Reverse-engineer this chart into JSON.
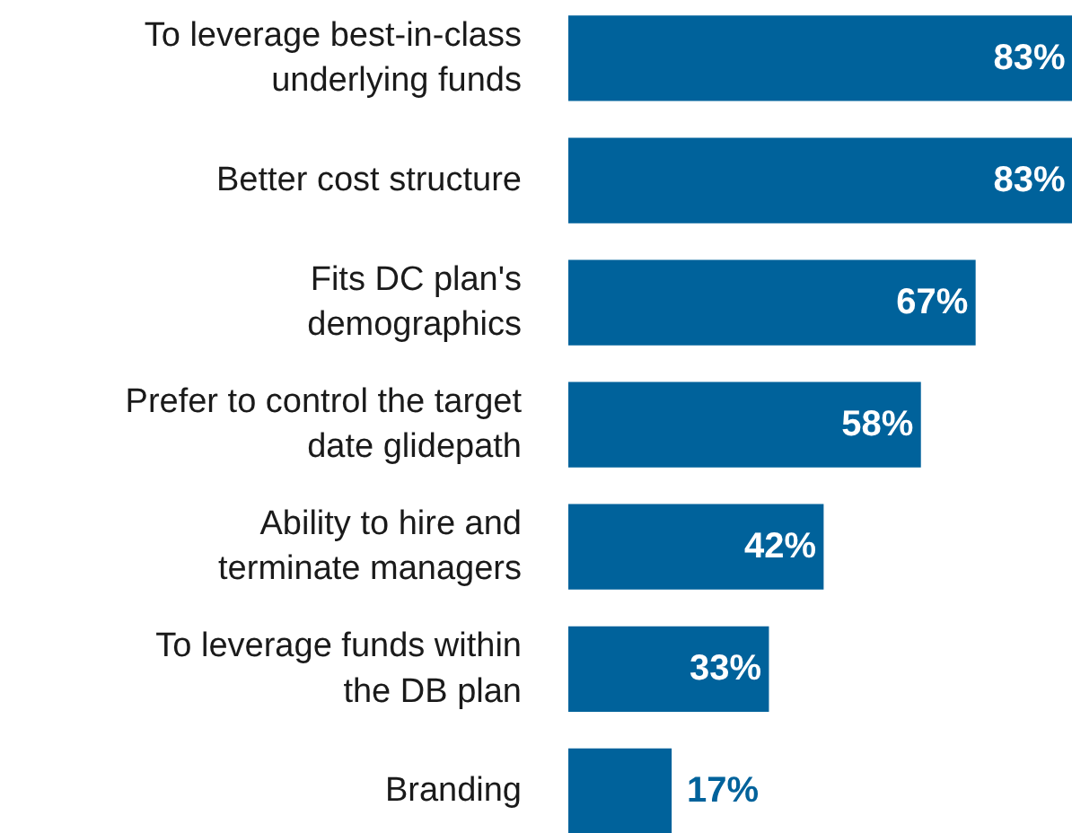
{
  "chart_data": {
    "type": "bar",
    "orientation": "horizontal",
    "categories": [
      "To leverage best-in-class\nunderlying funds",
      "Better cost structure",
      "Fits DC plan's\ndemographics",
      "Prefer to control the target\ndate glidepath",
      "Ability to hire and\nterminate managers",
      "To leverage funds within\nthe DB plan",
      "Branding"
    ],
    "values": [
      83,
      83,
      67,
      58,
      42,
      33,
      17
    ],
    "value_labels": [
      "83%",
      "83%",
      "67%",
      "58%",
      "42%",
      "33%",
      "17%"
    ],
    "color": "#00629b",
    "grid": false
  }
}
